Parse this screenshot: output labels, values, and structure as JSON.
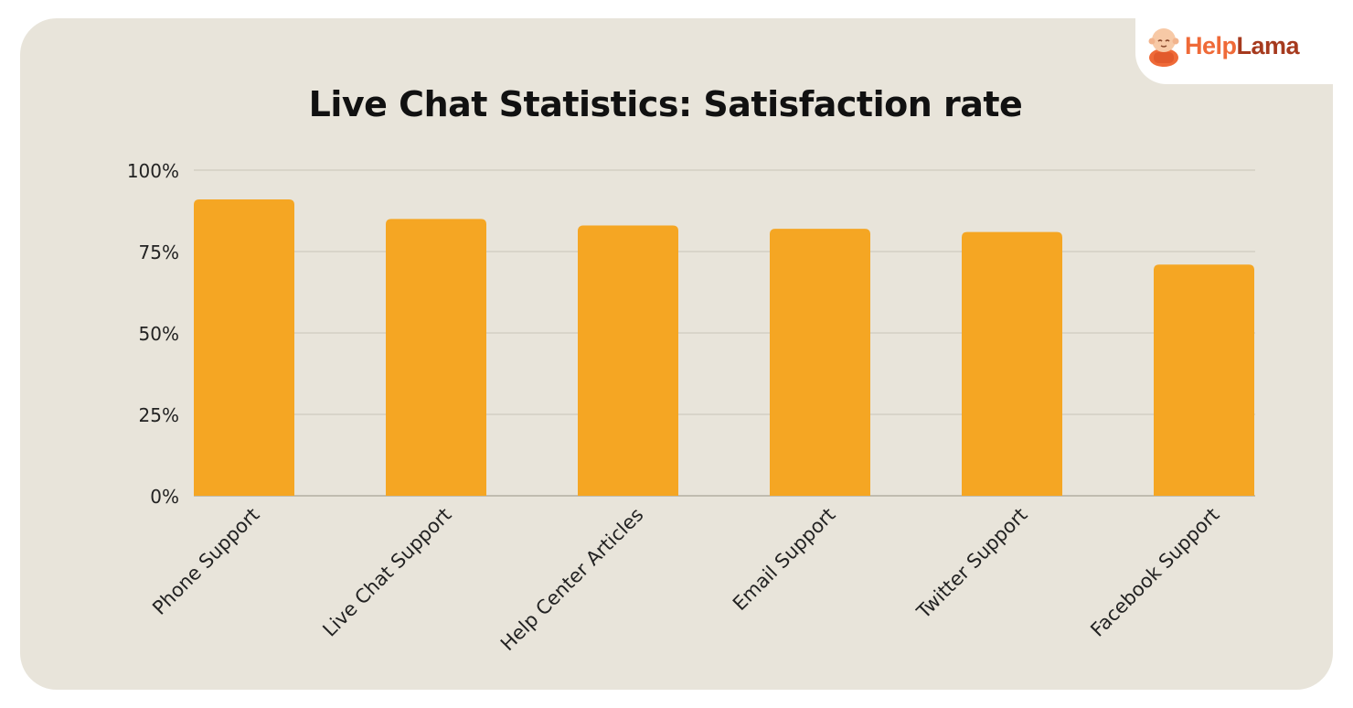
{
  "brand": {
    "logo_part1": "Help",
    "logo_part2": "Lama",
    "icon": "monk-mascot-icon"
  },
  "colors": {
    "background": "#e8e4da",
    "bar": "#f5a623",
    "grid": "#c9c4b8",
    "text": "#222222"
  },
  "chart_data": {
    "type": "bar",
    "title": "Live Chat Statistics: Satisfaction rate",
    "xlabel": "",
    "ylabel": "",
    "categories": [
      "Phone Support",
      "Live Chat Support",
      "Help Center Articles",
      "Email Support",
      "Twitter Support",
      "Facebook Support"
    ],
    "values": [
      91,
      85,
      83,
      82,
      81,
      71
    ],
    "ylim": [
      0,
      100
    ],
    "yticks": [
      "0%",
      "25%",
      "50%",
      "75%",
      "100%"
    ],
    "grid": true,
    "legend": "none"
  }
}
